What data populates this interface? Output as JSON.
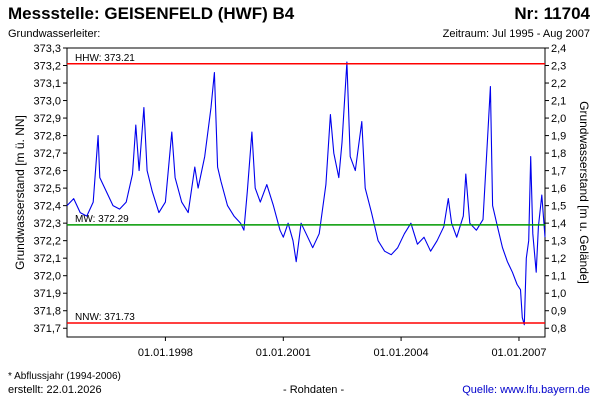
{
  "header": {
    "title_left": "Messstelle: GEISENFELD (HWF) B4",
    "title_right": "Nr: 11704",
    "subtitle_left": "Grundwasserleiter:",
    "subtitle_right": "Zeitraum: Jul 1995 - Aug 2007"
  },
  "footer": {
    "footnote": "* Abflussjahr (1994-2006)",
    "created": "erstellt:   22.01.2026",
    "raw_data": "- Rohdaten -",
    "source": "Quelle: www.lfu.bayern.de"
  },
  "colors": {
    "series": "#0000ee",
    "hhw_line": "#ff0000",
    "nnw_line": "#ff0000",
    "mw_line": "#009900"
  },
  "chart_data": {
    "type": "line",
    "title": "Messstelle: GEISENFELD (HWF) B4",
    "ylabel": "Grundwasserstand [m ü. NN]",
    "y2label": "Grundwasserstand [m u. Gelände]",
    "ylim": [
      371.65,
      373.3
    ],
    "y_ticks": [
      "371,7",
      "371,8",
      "371,9",
      "372,0",
      "372,1",
      "372,2",
      "372,3",
      "372,4",
      "372,5",
      "372,6",
      "372,7",
      "372,8",
      "372,9",
      "373,0",
      "373,1",
      "373,2",
      "373,3"
    ],
    "y2_ticks": [
      "0,8",
      "0,9",
      "1,0",
      "1,1",
      "1,2",
      "1,3",
      "1,4",
      "1,5",
      "1,6",
      "1,7",
      "1,8",
      "1,9",
      "2,0",
      "2,1",
      "2,2",
      "2,3",
      "2,4"
    ],
    "xlim": [
      "1995-07-01",
      "2007-08-31"
    ],
    "x_ticks": [
      "01.01.1998",
      "01.01.2001",
      "01.01.2004",
      "01.01.2007"
    ],
    "reference_lines": [
      {
        "label": "HHW: 373.21",
        "value": 373.21
      },
      {
        "label": "MW: 372.29",
        "value": 372.29
      },
      {
        "label": "NNW: 371.73",
        "value": 371.73
      }
    ],
    "grid": false,
    "series": [
      {
        "points": [
          [
            "1995-07-01",
            372.4
          ],
          [
            "1995-09-01",
            372.44
          ],
          [
            "1995-11-01",
            372.36
          ],
          [
            "1996-01-01",
            372.34
          ],
          [
            "1996-03-01",
            372.42
          ],
          [
            "1996-04-15",
            372.8
          ],
          [
            "1996-05-01",
            372.56
          ],
          [
            "1996-07-01",
            372.48
          ],
          [
            "1996-09-01",
            372.4
          ],
          [
            "1996-11-01",
            372.38
          ],
          [
            "1997-01-01",
            372.42
          ],
          [
            "1997-03-01",
            372.58
          ],
          [
            "1997-04-01",
            372.86
          ],
          [
            "1997-05-01",
            372.6
          ],
          [
            "1997-06-15",
            372.96
          ],
          [
            "1997-07-15",
            372.6
          ],
          [
            "1997-09-01",
            372.48
          ],
          [
            "1997-11-01",
            372.36
          ],
          [
            "1998-01-01",
            372.42
          ],
          [
            "1998-03-01",
            372.82
          ],
          [
            "1998-04-01",
            372.56
          ],
          [
            "1998-06-01",
            372.42
          ],
          [
            "1998-08-01",
            372.36
          ],
          [
            "1998-10-01",
            372.62
          ],
          [
            "1998-11-01",
            372.5
          ],
          [
            "1999-01-01",
            372.68
          ],
          [
            "1999-03-01",
            372.96
          ],
          [
            "1999-04-01",
            373.16
          ],
          [
            "1999-05-01",
            372.62
          ],
          [
            "1999-06-01",
            372.54
          ],
          [
            "1999-08-01",
            372.4
          ],
          [
            "1999-10-01",
            372.34
          ],
          [
            "1999-12-01",
            372.3
          ],
          [
            "2000-01-01",
            372.26
          ],
          [
            "2000-02-01",
            372.48
          ],
          [
            "2000-03-15",
            372.82
          ],
          [
            "2000-04-15",
            372.5
          ],
          [
            "2000-06-01",
            372.42
          ],
          [
            "2000-08-01",
            372.52
          ],
          [
            "2000-10-01",
            372.4
          ],
          [
            "2000-12-01",
            372.26
          ],
          [
            "2001-01-01",
            372.22
          ],
          [
            "2001-02-15",
            372.3
          ],
          [
            "2001-04-01",
            372.2
          ],
          [
            "2001-05-01",
            372.08
          ],
          [
            "2001-06-15",
            372.3
          ],
          [
            "2001-08-01",
            372.24
          ],
          [
            "2001-10-01",
            372.16
          ],
          [
            "2001-12-01",
            372.24
          ],
          [
            "2002-02-01",
            372.52
          ],
          [
            "2002-03-15",
            372.92
          ],
          [
            "2002-04-15",
            372.7
          ],
          [
            "2002-06-01",
            372.56
          ],
          [
            "2002-07-01",
            372.76
          ],
          [
            "2002-08-15",
            373.22
          ],
          [
            "2002-09-15",
            372.68
          ],
          [
            "2002-11-01",
            372.6
          ],
          [
            "2003-01-01",
            372.88
          ],
          [
            "2003-02-01",
            372.5
          ],
          [
            "2003-04-01",
            372.36
          ],
          [
            "2003-06-01",
            372.2
          ],
          [
            "2003-08-01",
            372.14
          ],
          [
            "2003-10-01",
            372.12
          ],
          [
            "2003-12-01",
            372.16
          ],
          [
            "2004-02-01",
            372.24
          ],
          [
            "2004-04-01",
            372.3
          ],
          [
            "2004-06-01",
            372.18
          ],
          [
            "2004-08-01",
            372.22
          ],
          [
            "2004-10-01",
            372.14
          ],
          [
            "2004-12-01",
            372.2
          ],
          [
            "2005-02-01",
            372.28
          ],
          [
            "2005-03-15",
            372.44
          ],
          [
            "2005-04-15",
            372.3
          ],
          [
            "2005-06-01",
            372.22
          ],
          [
            "2005-08-01",
            372.34
          ],
          [
            "2005-08-25",
            372.58
          ],
          [
            "2005-10-01",
            372.3
          ],
          [
            "2005-12-01",
            372.26
          ],
          [
            "2006-02-01",
            372.32
          ],
          [
            "2006-03-20",
            372.84
          ],
          [
            "2006-04-10",
            373.08
          ],
          [
            "2006-05-01",
            372.4
          ],
          [
            "2006-06-15",
            372.28
          ],
          [
            "2006-08-01",
            372.16
          ],
          [
            "2006-09-15",
            372.08
          ],
          [
            "2006-11-01",
            372.02
          ],
          [
            "2006-12-15",
            371.95
          ],
          [
            "2007-01-15",
            371.92
          ],
          [
            "2007-02-01",
            371.76
          ],
          [
            "2007-02-20",
            371.72
          ],
          [
            "2007-03-10",
            372.1
          ],
          [
            "2007-04-01",
            372.2
          ],
          [
            "2007-04-20",
            372.68
          ],
          [
            "2007-05-10",
            372.24
          ],
          [
            "2007-06-10",
            372.02
          ],
          [
            "2007-07-01",
            372.28
          ],
          [
            "2007-08-01",
            372.46
          ],
          [
            "2007-08-31",
            372.22
          ]
        ]
      }
    ]
  }
}
